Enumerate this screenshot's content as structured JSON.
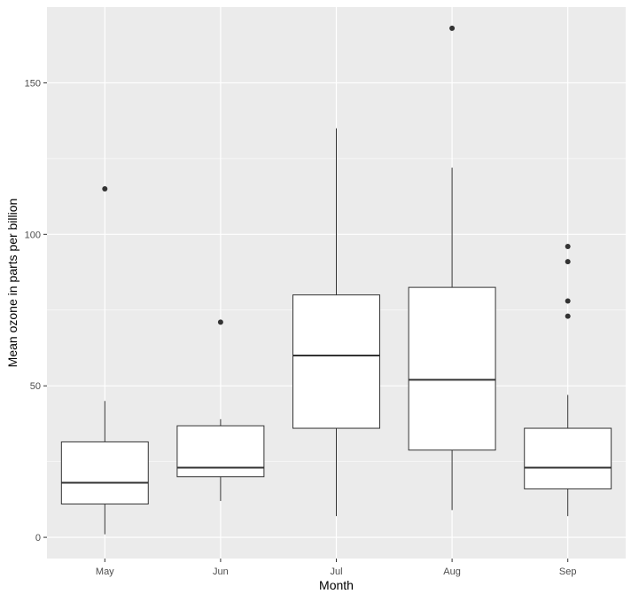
{
  "chart_data": {
    "type": "boxplot",
    "xlabel": "Month",
    "ylabel": "Mean ozone in parts per billion",
    "categories": [
      "May",
      "Jun",
      "Jul",
      "Aug",
      "Sep"
    ],
    "ylim": [
      -7,
      175
    ],
    "yticks": [
      0,
      50,
      100,
      150
    ],
    "grid": true,
    "panel_background": "#ebebeb",
    "grid_color": "#ffffff",
    "box_fill": "#ffffff",
    "line_color": "#333333",
    "boxes": [
      {
        "category": "May",
        "whisker_low": 1,
        "q1": 11,
        "median": 18,
        "q3": 31.5,
        "whisker_high": 45,
        "outliers": [
          115
        ]
      },
      {
        "category": "Jun",
        "whisker_low": 12,
        "q1": 20,
        "median": 23,
        "q3": 36.8,
        "whisker_high": 39,
        "outliers": [
          71
        ]
      },
      {
        "category": "Jul",
        "whisker_low": 7,
        "q1": 36,
        "median": 60,
        "q3": 80,
        "whisker_high": 135,
        "outliers": []
      },
      {
        "category": "Aug",
        "whisker_low": 9,
        "q1": 28.8,
        "median": 52,
        "q3": 82.5,
        "whisker_high": 122,
        "outliers": [
          168
        ]
      },
      {
        "category": "Sep",
        "whisker_low": 7,
        "q1": 16,
        "median": 23,
        "q3": 36,
        "whisker_high": 47,
        "outliers": [
          73,
          78,
          91,
          96
        ]
      }
    ]
  }
}
